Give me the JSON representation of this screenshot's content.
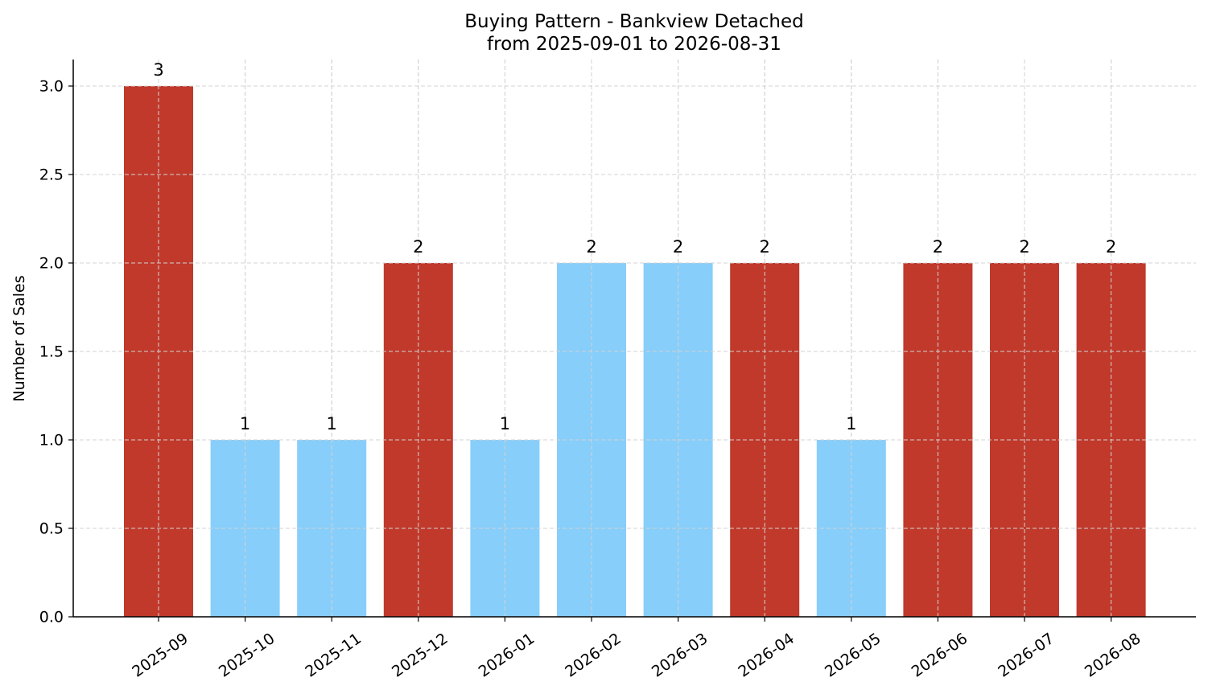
{
  "chart_data": {
    "type": "bar",
    "title": "Buying Pattern - Bankview Detached",
    "subtitle": "from 2025-09-01 to 2026-08-31",
    "xlabel": "",
    "ylabel": "Number of Sales",
    "categories": [
      "2025-09",
      "2025-10",
      "2025-11",
      "2025-12",
      "2026-01",
      "2026-02",
      "2026-03",
      "2026-04",
      "2026-05",
      "2026-06",
      "2026-07",
      "2026-08"
    ],
    "values": [
      3,
      1,
      1,
      2,
      1,
      2,
      2,
      2,
      1,
      2,
      2,
      2
    ],
    "bar_colors": [
      "#c0392b",
      "#87cefa",
      "#87cefa",
      "#c0392b",
      "#87cefa",
      "#87cefa",
      "#87cefa",
      "#c0392b",
      "#87cefa",
      "#c0392b",
      "#c0392b",
      "#c0392b"
    ],
    "data_labels": [
      "3",
      "1",
      "1",
      "2",
      "1",
      "2",
      "2",
      "2",
      "1",
      "2",
      "2",
      "2"
    ],
    "ylim": [
      0,
      3.15
    ],
    "yticks": [
      0,
      0.5,
      1,
      1.5,
      2,
      2.5,
      3
    ],
    "ytick_labels": [
      "0.0",
      "0.5",
      "1.0",
      "1.5",
      "2.0",
      "2.5",
      "3.0"
    ],
    "grid": true,
    "legend": "none",
    "colors": {
      "high": "#c0392b",
      "low": "#87cefa"
    }
  }
}
